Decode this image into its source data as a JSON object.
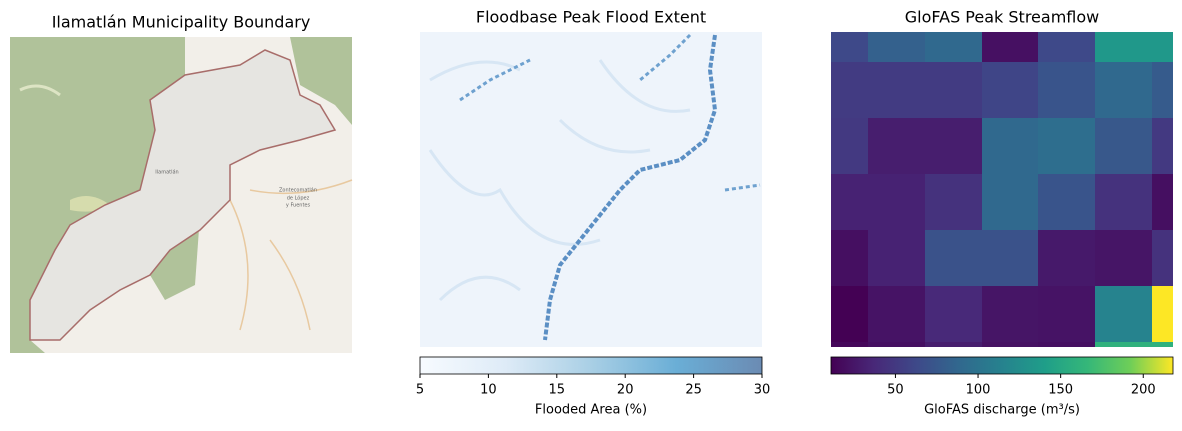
{
  "chart_data": [
    {
      "type": "map",
      "title": "Ilamatlán Municipality Boundary",
      "place_labels": [
        "Ilamatlán",
        "Zontecomatlán",
        "de López",
        "y Fuentes"
      ]
    },
    {
      "type": "raster",
      "title": "Floodbase Peak Flood Extent",
      "cmap": "Blues",
      "colorbar_label": "Flooded Area (%)",
      "clim": [
        5,
        30
      ],
      "cticks": [
        5,
        10,
        15,
        20,
        25,
        30
      ]
    },
    {
      "type": "heatmap",
      "title": "GloFAS Peak Streamflow",
      "cmap": "viridis",
      "colorbar_label": "GloFAS discharge (m³/s)",
      "clim": [
        11,
        218
      ],
      "cticks": [
        50,
        100,
        150,
        200
      ],
      "values": [
        [
          63,
          83,
          90,
          21,
          63,
          135,
          135
        ],
        [
          52,
          52,
          52,
          60,
          72,
          90,
          78
        ],
        [
          50,
          30,
          30,
          90,
          95,
          75,
          50
        ],
        [
          33,
          33,
          45,
          90,
          72,
          45,
          20
        ],
        [
          20,
          33,
          70,
          70,
          27,
          24,
          45
        ],
        [
          11,
          23,
          38,
          24,
          23,
          115,
          218
        ],
        [
          15,
          20,
          30,
          22,
          20,
          160,
          160
        ]
      ]
    }
  ]
}
